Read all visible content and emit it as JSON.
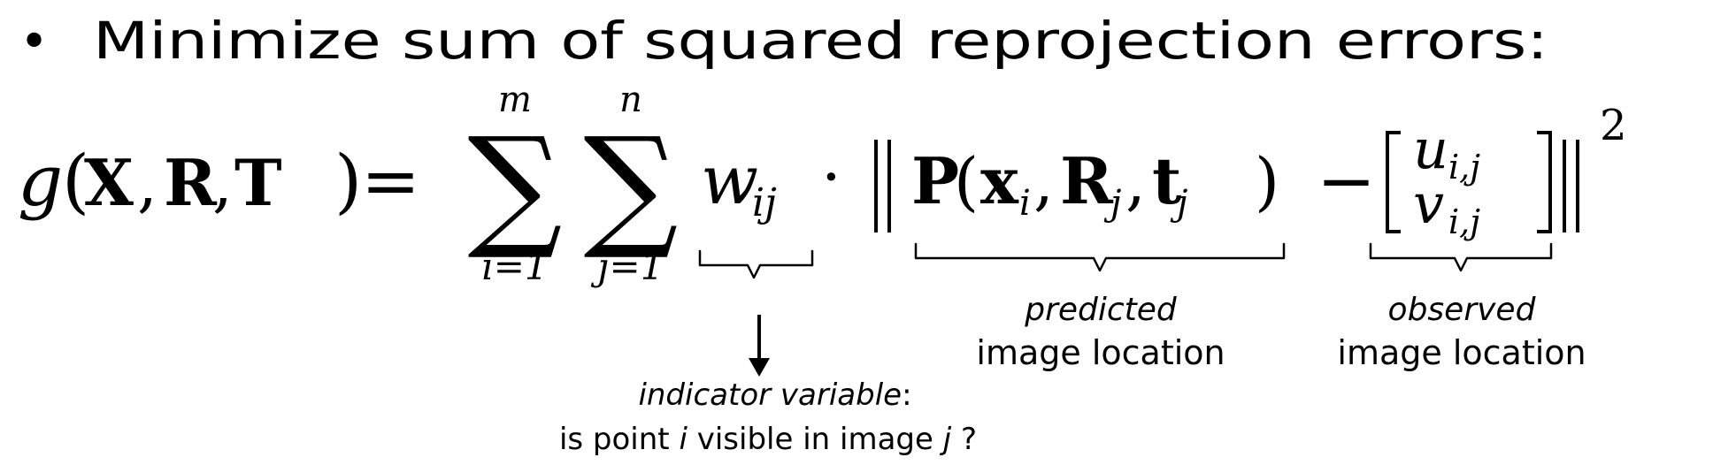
{
  "bullet": {
    "marker": "•",
    "text": "Minimize sum of squared reprojection errors:"
  },
  "equation": {
    "lhs_function": "g",
    "lhs_args": [
      "X",
      "R",
      "T"
    ],
    "lhs_open_paren": "(",
    "lhs_comma": ",",
    "lhs_close_paren": ")",
    "equals": "=",
    "sum1": {
      "symbol": "∑",
      "upper": "m",
      "lower": "i=1"
    },
    "sum2": {
      "symbol": "∑",
      "upper": "n",
      "lower": "j=1"
    },
    "weight": {
      "symbol": "w",
      "subscript": "ij"
    },
    "dot": "·",
    "projection": {
      "function": "P",
      "open_paren": "(",
      "close_paren": ")",
      "comma": ",",
      "args": [
        {
          "symbol": "x",
          "subscript": "i"
        },
        {
          "symbol": "R",
          "subscript": "j"
        },
        {
          "symbol": "t",
          "subscript": "j"
        }
      ]
    },
    "minus": "−",
    "observed_vector": {
      "top": {
        "symbol": "u",
        "subscript": "i,j"
      },
      "bottom": {
        "symbol": "v",
        "subscript": "i,j"
      }
    },
    "exponent": "2"
  },
  "annotations": {
    "predicted": {
      "line1": "predicted",
      "line2": "image location"
    },
    "observed": {
      "line1": "observed",
      "line2": "image location"
    },
    "indicator": {
      "line1_italic": "indicator variable",
      "line1_suffix": ":",
      "line2_part1": "is point ",
      "line2_var1": "i",
      "line2_part2": " visible in image ",
      "line2_var2": "j",
      "line2_part3": " ?"
    }
  }
}
